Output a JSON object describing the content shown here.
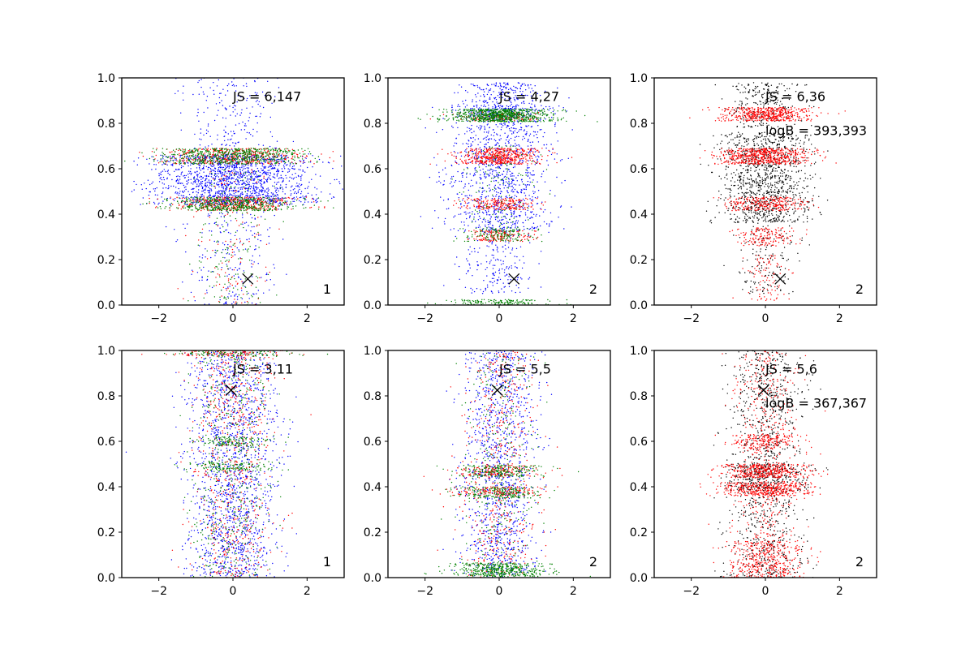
{
  "figure": {
    "background": "#ffffff"
  },
  "chart_data": [
    {
      "type": "scatter",
      "title": "",
      "xlabel": "",
      "ylabel": "",
      "xlim": [
        -3,
        3
      ],
      "ylim": [
        0,
        1
      ],
      "xticks": [
        "−2",
        "0",
        "2"
      ],
      "yticks": [
        "0.0",
        "0.2",
        "0.4",
        "0.6",
        "0.8",
        "1.0"
      ],
      "grid": false,
      "annotations": [
        {
          "text": "JS = 6,147",
          "x": 0,
          "y": 0.92
        }
      ],
      "panel_label": "1",
      "marker": {
        "x": 0.4,
        "y": 0.115,
        "symbol": "x"
      },
      "series": [
        {
          "color": "#0000ff",
          "bands": [
            {
              "y": 0.55,
              "spread": 0.11,
              "xsd": 1.1,
              "count": 1500
            },
            {
              "y": 0.5,
              "spread": 0.5,
              "xsd": 0.6,
              "count": 500
            }
          ]
        },
        {
          "color": "#ff0000",
          "bands": [
            {
              "y": 0.655,
              "spread": 0.035,
              "xsd": 0.95,
              "count": 420
            },
            {
              "y": 0.445,
              "spread": 0.03,
              "xsd": 0.85,
              "count": 380
            },
            {
              "y": 0.3,
              "spread": 0.3,
              "xsd": 0.5,
              "count": 140
            }
          ]
        },
        {
          "color": "#008000",
          "bands": [
            {
              "y": 0.655,
              "spread": 0.035,
              "xsd": 0.95,
              "count": 650
            },
            {
              "y": 0.445,
              "spread": 0.03,
              "xsd": 0.85,
              "count": 480
            },
            {
              "y": 0.3,
              "spread": 0.3,
              "xsd": 0.5,
              "count": 180
            }
          ]
        }
      ]
    },
    {
      "type": "scatter",
      "title": "",
      "xlabel": "",
      "ylabel": "",
      "xlim": [
        -3,
        3
      ],
      "ylim": [
        0,
        1
      ],
      "xticks": [
        "−2",
        "0",
        "2"
      ],
      "yticks": [
        "0.0",
        "0.2",
        "0.4",
        "0.6",
        "0.8",
        "1.0"
      ],
      "grid": false,
      "annotations": [
        {
          "text": "JS = 4,27",
          "x": 0,
          "y": 0.92
        }
      ],
      "panel_label": "2",
      "marker": {
        "x": 0.4,
        "y": 0.115,
        "symbol": "x"
      },
      "series": [
        {
          "color": "#0000ff",
          "bands": [
            {
              "y": 0.6,
              "spread": 0.28,
              "xsd": 0.7,
              "count": 1100
            },
            {
              "y": 0.9,
              "spread": 0.08,
              "xsd": 0.6,
              "count": 300
            },
            {
              "y": 0.2,
              "spread": 0.15,
              "xsd": 0.45,
              "count": 200
            }
          ]
        },
        {
          "color": "#ff0000",
          "bands": [
            {
              "y": 0.655,
              "spread": 0.035,
              "xsd": 0.55,
              "count": 520
            },
            {
              "y": 0.445,
              "spread": 0.025,
              "xsd": 0.5,
              "count": 220
            },
            {
              "y": 0.305,
              "spread": 0.025,
              "xsd": 0.45,
              "count": 150
            },
            {
              "y": 0.83,
              "spread": 0.02,
              "xsd": 0.6,
              "count": 120
            }
          ]
        },
        {
          "color": "#008000",
          "bands": [
            {
              "y": 0.835,
              "spread": 0.028,
              "xsd": 0.7,
              "count": 850
            },
            {
              "y": 0.31,
              "spread": 0.03,
              "xsd": 0.45,
              "count": 140
            },
            {
              "y": 0.012,
              "spread": 0.012,
              "xsd": 0.7,
              "count": 160
            },
            {
              "y": 0.5,
              "spread": 0.2,
              "xsd": 0.5,
              "count": 150
            }
          ]
        }
      ]
    },
    {
      "type": "scatter",
      "title": "",
      "xlabel": "",
      "ylabel": "",
      "xlim": [
        -3,
        3
      ],
      "ylim": [
        0,
        1
      ],
      "xticks": [
        "−2",
        "0",
        "2"
      ],
      "yticks": [
        "0.0",
        "0.2",
        "0.4",
        "0.6",
        "0.8",
        "1.0"
      ],
      "grid": false,
      "annotations": [
        {
          "text": "JS = 6,36",
          "x": 0,
          "y": 0.92
        },
        {
          "text": "logB = 393,393",
          "x": 0,
          "y": 0.77
        }
      ],
      "panel_label": "2",
      "marker": {
        "x": 0.4,
        "y": 0.115,
        "symbol": "x"
      },
      "series": [
        {
          "color": "#000000",
          "bands": [
            {
              "y": 0.56,
              "spread": 0.2,
              "xsd": 0.6,
              "count": 1100
            },
            {
              "y": 0.88,
              "spread": 0.1,
              "xsd": 0.5,
              "count": 250
            },
            {
              "y": 0.2,
              "spread": 0.15,
              "xsd": 0.4,
              "count": 150
            }
          ]
        },
        {
          "color": "#ff0000",
          "bands": [
            {
              "y": 0.84,
              "spread": 0.03,
              "xsd": 0.6,
              "count": 520
            },
            {
              "y": 0.655,
              "spread": 0.035,
              "xsd": 0.6,
              "count": 620
            },
            {
              "y": 0.445,
              "spread": 0.03,
              "xsd": 0.5,
              "count": 280
            },
            {
              "y": 0.3,
              "spread": 0.04,
              "xsd": 0.4,
              "count": 160
            },
            {
              "y": 0.12,
              "spread": 0.1,
              "xsd": 0.3,
              "count": 90
            }
          ]
        }
      ]
    },
    {
      "type": "scatter",
      "title": "",
      "xlabel": "",
      "ylabel": "",
      "xlim": [
        -3,
        3
      ],
      "ylim": [
        0,
        1
      ],
      "xticks": [
        "−2",
        "0",
        "2"
      ],
      "yticks": [
        "0.0",
        "0.2",
        "0.4",
        "0.6",
        "0.8",
        "1.0"
      ],
      "grid": false,
      "annotations": [
        {
          "text": "JS = 3,11",
          "x": 0,
          "y": 0.92
        }
      ],
      "panel_label": "1",
      "marker": {
        "x": -0.05,
        "y": 0.825,
        "symbol": "x"
      },
      "series": [
        {
          "color": "#0000ff",
          "bands": [
            {
              "y": 0.5,
              "spread": 0.5,
              "xsd": 0.6,
              "count": 1600
            }
          ]
        },
        {
          "color": "#ff0000",
          "bands": [
            {
              "y": 0.5,
              "spread": 0.5,
              "xsd": 0.55,
              "count": 650
            },
            {
              "y": 0.995,
              "spread": 0.02,
              "xsd": 0.8,
              "count": 150
            }
          ]
        },
        {
          "color": "#008000",
          "bands": [
            {
              "y": 0.5,
              "spread": 0.5,
              "xsd": 0.55,
              "count": 500
            },
            {
              "y": 0.6,
              "spread": 0.02,
              "xsd": 0.55,
              "count": 120
            },
            {
              "y": 0.49,
              "spread": 0.02,
              "xsd": 0.55,
              "count": 120
            },
            {
              "y": 0.995,
              "spread": 0.02,
              "xsd": 0.8,
              "count": 150
            }
          ]
        }
      ]
    },
    {
      "type": "scatter",
      "title": "",
      "xlabel": "",
      "ylabel": "",
      "xlim": [
        -3,
        3
      ],
      "ylim": [
        0,
        1
      ],
      "xticks": [
        "−2",
        "0",
        "2"
      ],
      "yticks": [
        "0.0",
        "0.2",
        "0.4",
        "0.6",
        "0.8",
        "1.0"
      ],
      "grid": false,
      "annotations": [
        {
          "text": "JS = 5,5",
          "x": 0,
          "y": 0.92
        }
      ],
      "panel_label": "2",
      "marker": {
        "x": -0.05,
        "y": 0.825,
        "symbol": "x"
      },
      "series": [
        {
          "color": "#0000ff",
          "bands": [
            {
              "y": 0.5,
              "spread": 0.5,
              "xsd": 0.5,
              "count": 1200
            }
          ]
        },
        {
          "color": "#ff0000",
          "bands": [
            {
              "y": 0.5,
              "spread": 0.5,
              "xsd": 0.5,
              "count": 500
            },
            {
              "y": 0.47,
              "spread": 0.025,
              "xsd": 0.6,
              "count": 150
            },
            {
              "y": 0.38,
              "spread": 0.02,
              "xsd": 0.6,
              "count": 150
            }
          ]
        },
        {
          "color": "#008000",
          "bands": [
            {
              "y": 0.47,
              "spread": 0.025,
              "xsd": 0.6,
              "count": 200
            },
            {
              "y": 0.375,
              "spread": 0.025,
              "xsd": 0.6,
              "count": 200
            },
            {
              "y": 0.035,
              "spread": 0.03,
              "xsd": 0.65,
              "count": 450
            },
            {
              "y": 0.5,
              "spread": 0.5,
              "xsd": 0.5,
              "count": 300
            }
          ]
        }
      ]
    },
    {
      "type": "scatter",
      "title": "",
      "xlabel": "",
      "ylabel": "",
      "xlim": [
        -3,
        3
      ],
      "ylim": [
        0,
        1
      ],
      "xticks": [
        "−2",
        "0",
        "2"
      ],
      "yticks": [
        "0.0",
        "0.2",
        "0.4",
        "0.6",
        "0.8",
        "1.0"
      ],
      "grid": false,
      "annotations": [
        {
          "text": "JS = 5,6",
          "x": 0,
          "y": 0.92
        },
        {
          "text": "logB = 367,367",
          "x": 0,
          "y": 0.77
        }
      ],
      "panel_label": "2",
      "marker": {
        "x": -0.05,
        "y": 0.825,
        "symbol": "x"
      },
      "series": [
        {
          "color": "#000000",
          "bands": [
            {
              "y": 0.5,
              "spread": 0.5,
              "xsd": 0.5,
              "count": 1000
            },
            {
              "y": 0.44,
              "spread": 0.06,
              "xsd": 0.6,
              "count": 250
            }
          ]
        },
        {
          "color": "#ff0000",
          "bands": [
            {
              "y": 0.39,
              "spread": 0.03,
              "xsd": 0.6,
              "count": 420
            },
            {
              "y": 0.47,
              "spread": 0.03,
              "xsd": 0.6,
              "count": 380
            },
            {
              "y": 0.6,
              "spread": 0.03,
              "xsd": 0.5,
              "count": 180
            },
            {
              "y": 0.08,
              "spread": 0.08,
              "xsd": 0.5,
              "count": 350
            },
            {
              "y": 0.5,
              "spread": 0.5,
              "xsd": 0.45,
              "count": 600
            }
          ]
        }
      ]
    }
  ]
}
